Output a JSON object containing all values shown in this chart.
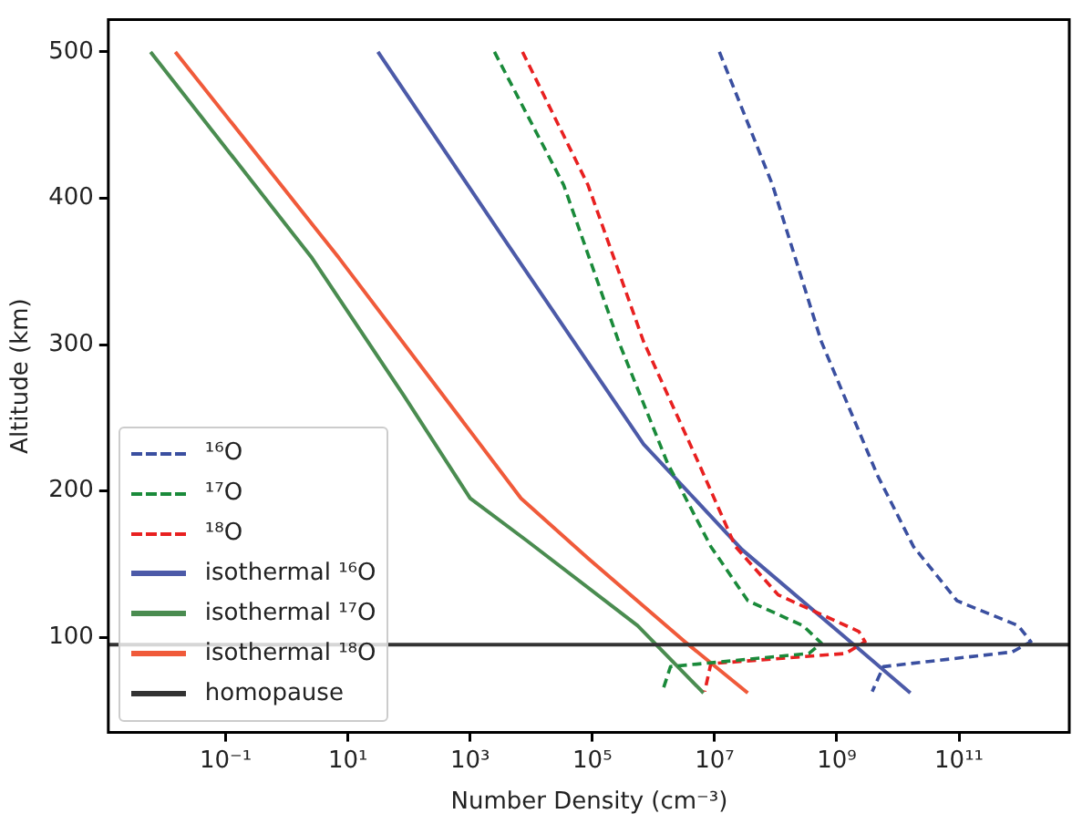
{
  "chart_data": {
    "type": "line",
    "xlabel": "Number Density (cm⁻³)",
    "ylabel": "Altitude (km)",
    "log": "x",
    "xlim": [
      0.0012,
      6600000000000.0
    ],
    "ylim": [
      35,
      522
    ],
    "xticks": [
      {
        "value": 0.1,
        "label": "10⁻¹"
      },
      {
        "value": 10,
        "label": "10¹"
      },
      {
        "value": 1000,
        "label": "10³"
      },
      {
        "value": 100000,
        "label": "10⁵"
      },
      {
        "value": 10000000,
        "label": "10⁷"
      },
      {
        "value": 1000000000,
        "label": "10⁹"
      },
      {
        "value": 100000000000,
        "label": "10¹¹"
      }
    ],
    "yticks": [
      100,
      200,
      300,
      400,
      500
    ],
    "legend": "lower left",
    "series": [
      {
        "name": "¹⁶O",
        "color": "#3a4fa0",
        "line_style": "dashed",
        "x": [
          12000000.0,
          89000000.0,
          560000000.0,
          4600000000.0,
          18000000000.0,
          93000000000.0,
          930000000000.0,
          1500000000000.0,
          740000000000.0,
          5800000000.0,
          3800000000.0
        ],
        "values": [
          500,
          409,
          302,
          211,
          162,
          125,
          108,
          97,
          90,
          80,
          63
        ]
      },
      {
        "name": "¹⁷O",
        "color": "#1a8a3a",
        "line_style": "dashed",
        "x": [
          2500.0,
          34000.0,
          270000.0,
          1700000.0,
          8700000.0,
          35000000.0,
          280000000.0,
          560000000.0,
          350000000.0,
          1900000.0,
          1400000.0
        ],
        "values": [
          500,
          409,
          302,
          219,
          162,
          125,
          108,
          96,
          89,
          80,
          63
        ]
      },
      {
        "name": "¹⁸O",
        "color": "#e82020",
        "line_style": "dashed",
        "x": [
          7200.0,
          85000.0,
          690000.0,
          5500000.0,
          22000000.0,
          110000000.0,
          2300000000.0,
          2900000000.0,
          1400000000.0,
          8700000.0,
          6900000.0
        ],
        "values": [
          500,
          409,
          302,
          219,
          162,
          129,
          104,
          97,
          89,
          82,
          63
        ]
      },
      {
        "name": "isothermal ¹⁶O",
        "color": "#4c5aa8",
        "line_style": "solid",
        "x": [
          31,
          4200.0,
          690000.0,
          28000000.0,
          2300000000.0,
          16000000000.0
        ],
        "values": [
          500,
          368,
          232,
          160,
          92,
          62
        ]
      },
      {
        "name": "isothermal ¹⁷O",
        "color": "#4a8c50",
        "line_style": "solid",
        "x": [
          0.0059,
          2.6,
          83,
          1000.0,
          8500.0,
          550000.0,
          6600000.0
        ],
        "values": [
          500,
          359,
          265,
          195,
          166,
          108,
          62
        ]
      },
      {
        "name": "isothermal ¹⁸O",
        "color": "#f05a3a",
        "line_style": "solid",
        "x": [
          0.015,
          7.2,
          6800.0,
          85000.0,
          3500000.0,
          35000000.0
        ],
        "values": [
          500,
          359,
          195,
          154,
          96,
          62
        ]
      }
    ],
    "ref_lines": [
      {
        "axis": "y",
        "value": 95,
        "label": "homopause",
        "color": "#333333",
        "line_style": "solid"
      }
    ]
  }
}
